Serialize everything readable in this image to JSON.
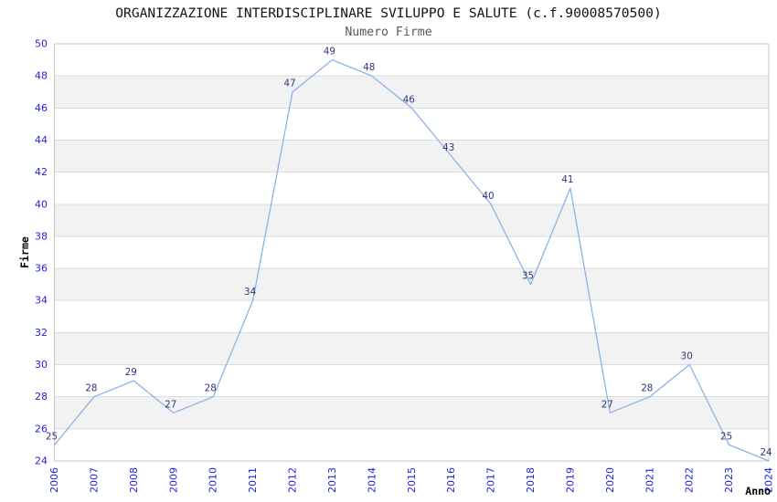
{
  "chart_data": {
    "type": "line",
    "title": "ORGANIZZAZIONE INTERDISCIPLINARE SVILUPPO E SALUTE (c.f.90008570500)",
    "subtitle": "Numero Firme",
    "xlabel": "Anno",
    "ylabel": "Firme",
    "x": [
      2006,
      2007,
      2008,
      2009,
      2010,
      2011,
      2012,
      2013,
      2014,
      2015,
      2016,
      2017,
      2018,
      2019,
      2020,
      2021,
      2022,
      2023,
      2024
    ],
    "series": [
      {
        "name": "Numero Firme",
        "values": [
          25,
          28,
          29,
          27,
          28,
          34,
          47,
          49,
          48,
          46,
          43,
          40,
          35,
          41,
          27,
          28,
          30,
          25,
          24
        ]
      }
    ],
    "ylim": [
      24,
      50
    ],
    "ytick_step": 2,
    "grid": "horizontal",
    "banded_background": true,
    "legend": "none",
    "point_labels": true,
    "colors": {
      "line": "#8ab4e6",
      "band_fill": "#f2f2f2",
      "grid_line": "#dcdcdc",
      "plot_border": "#c8c8c8",
      "tick_label": "#2222dd",
      "point_label": "#333380",
      "title": "#141414",
      "subtitle": "#595959",
      "axis_title": "#000000",
      "background": "#ffffff"
    }
  }
}
